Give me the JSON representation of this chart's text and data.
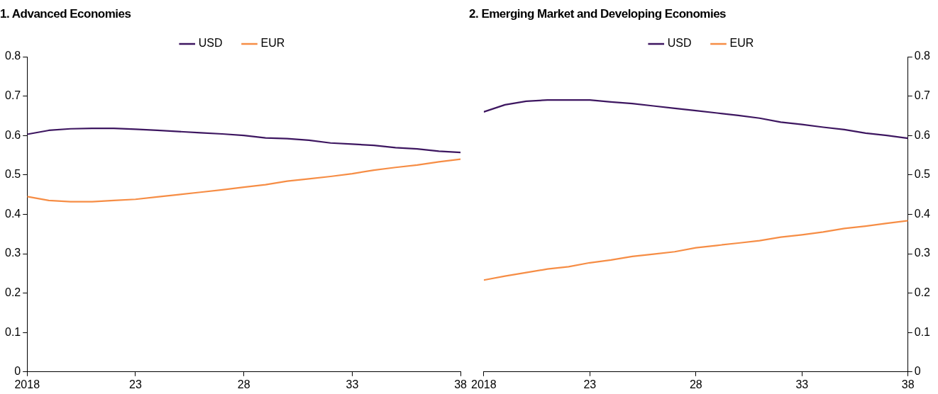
{
  "chart_data": [
    {
      "type": "line",
      "title": "1. Advanced Economies",
      "x": [
        2018,
        2019,
        2020,
        2021,
        2022,
        2023,
        2024,
        2025,
        2026,
        2027,
        2028,
        2029,
        2030,
        2031,
        2032,
        2033,
        2034,
        2035,
        2036,
        2037,
        2038
      ],
      "series": [
        {
          "name": "USD",
          "color": "#3d1660",
          "values": [
            0.603,
            0.613,
            0.617,
            0.618,
            0.618,
            0.616,
            0.613,
            0.61,
            0.607,
            0.604,
            0.6,
            0.594,
            0.592,
            0.588,
            0.581,
            0.578,
            0.575,
            0.569,
            0.566,
            0.56,
            0.557
          ]
        },
        {
          "name": "EUR",
          "color": "#f68d45",
          "values": [
            0.445,
            0.435,
            0.432,
            0.432,
            0.435,
            0.438,
            0.444,
            0.45,
            0.456,
            0.462,
            0.469,
            0.475,
            0.484,
            0.49,
            0.496,
            0.503,
            0.512,
            0.519,
            0.525,
            0.533,
            0.54
          ]
        }
      ],
      "xlim": [
        2018,
        2038
      ],
      "xticks": [
        2018,
        {
          "value": 2023,
          "label": "23"
        },
        {
          "value": 2028,
          "label": "28"
        },
        {
          "value": 2033,
          "label": "33"
        },
        {
          "value": 2038,
          "label": "38"
        }
      ],
      "ylim": [
        0,
        0.8
      ],
      "yticks": [
        0,
        0.1,
        0.2,
        0.3,
        0.4,
        0.5,
        0.6,
        0.7,
        0.8
      ],
      "legend": "top",
      "grid": false,
      "marker": "none"
    },
    {
      "type": "line",
      "title": "2. Emerging Market and Developing Economies",
      "x": [
        2018,
        2019,
        2020,
        2021,
        2022,
        2023,
        2024,
        2025,
        2026,
        2027,
        2028,
        2029,
        2030,
        2031,
        2032,
        2033,
        2034,
        2035,
        2036,
        2037,
        2038
      ],
      "series": [
        {
          "name": "USD",
          "color": "#3d1660",
          "axis": "y2",
          "values": [
            0.66,
            0.678,
            0.687,
            0.69,
            0.69,
            0.69,
            0.685,
            0.681,
            0.675,
            0.669,
            0.663,
            0.657,
            0.651,
            0.644,
            0.634,
            0.628,
            0.621,
            0.615,
            0.606,
            0.6,
            0.593
          ]
        },
        {
          "name": "EUR",
          "color": "#f68d45",
          "axis": "y2",
          "values": [
            0.233,
            0.243,
            0.252,
            0.261,
            0.267,
            0.277,
            0.284,
            0.293,
            0.299,
            0.305,
            0.315,
            0.321,
            0.327,
            0.333,
            0.342,
            0.348,
            0.355,
            0.364,
            0.37,
            0.377,
            0.384
          ]
        }
      ],
      "xlim": [
        2018,
        2038
      ],
      "xticks": [
        2018,
        {
          "value": 2023,
          "label": "23"
        },
        {
          "value": 2028,
          "label": "28"
        },
        {
          "value": 2033,
          "label": "33"
        },
        {
          "value": 2038,
          "label": "38"
        }
      ],
      "y2lim": [
        0,
        0.8
      ],
      "y2ticks": [
        0,
        0.1,
        0.2,
        0.3,
        0.4,
        0.5,
        0.6,
        0.7,
        0.8
      ],
      "legend": "top",
      "grid": false,
      "marker": "none"
    }
  ]
}
